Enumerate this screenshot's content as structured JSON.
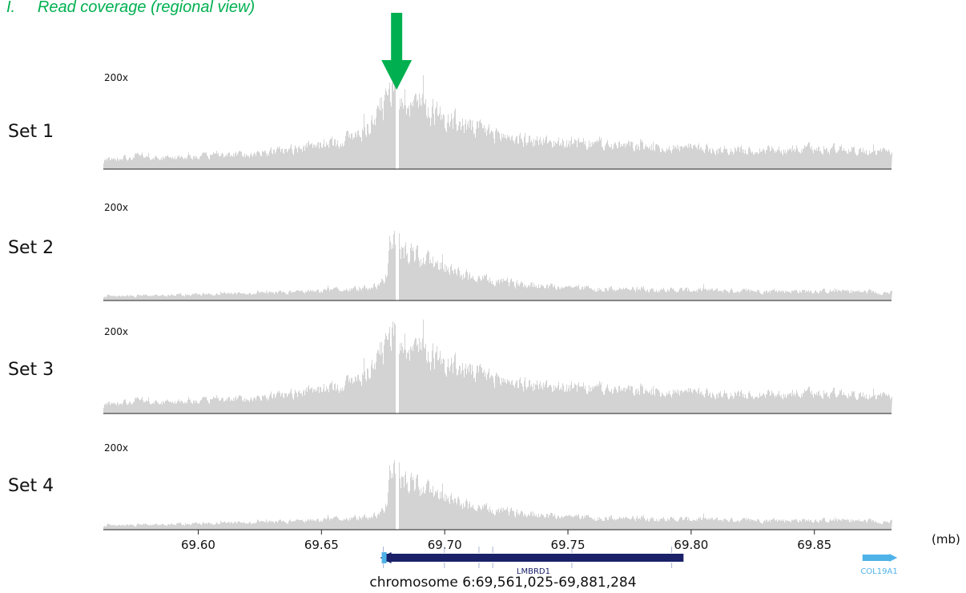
{
  "panel_title": "I.     Read coverage (regional view)",
  "arrow_color": "#00b050",
  "coverage_color": "#d3d3d3",
  "chart_data": {
    "type": "area",
    "title": "Read coverage (regional view)",
    "xlabel": "chromosome 6:69,561,025-69,881,284",
    "x_unit": "(mb)",
    "xlim": [
      69.561025,
      69.881284
    ],
    "x_ticks": [
      "69.60",
      "69.65",
      "69.70",
      "69.75",
      "69.80",
      "69.85"
    ],
    "ylim": [
      0,
      200
    ],
    "scale_label": "200x",
    "highlight_position_mb": 69.6805,
    "tracks": [
      {
        "name": "Set 1",
        "profile": [
          [
            69.561,
            22
          ],
          [
            69.575,
            30
          ],
          [
            69.58,
            25
          ],
          [
            69.6,
            30
          ],
          [
            69.62,
            34
          ],
          [
            69.64,
            48
          ],
          [
            69.655,
            62
          ],
          [
            69.665,
            82
          ],
          [
            69.672,
            120
          ],
          [
            69.678,
            180
          ],
          [
            69.68,
            190
          ],
          [
            69.683,
            168
          ],
          [
            69.69,
            150
          ],
          [
            69.7,
            118
          ],
          [
            69.71,
            98
          ],
          [
            69.72,
            82
          ],
          [
            69.73,
            70
          ],
          [
            69.75,
            60
          ],
          [
            69.78,
            52
          ],
          [
            69.8,
            48
          ],
          [
            69.82,
            44
          ],
          [
            69.84,
            46
          ],
          [
            69.86,
            48
          ],
          [
            69.881,
            36
          ]
        ]
      },
      {
        "name": "Set 2",
        "profile": [
          [
            69.561,
            10
          ],
          [
            69.58,
            12
          ],
          [
            69.6,
            14
          ],
          [
            69.62,
            16
          ],
          [
            69.64,
            20
          ],
          [
            69.66,
            26
          ],
          [
            69.672,
            34
          ],
          [
            69.676,
            56
          ],
          [
            69.678,
            162
          ],
          [
            69.68,
            170
          ],
          [
            69.682,
            120
          ],
          [
            69.69,
            98
          ],
          [
            69.7,
            74
          ],
          [
            69.71,
            56
          ],
          [
            69.72,
            44
          ],
          [
            69.74,
            34
          ],
          [
            69.76,
            28
          ],
          [
            69.8,
            24
          ],
          [
            69.83,
            22
          ],
          [
            69.86,
            22
          ],
          [
            69.881,
            18
          ]
        ]
      },
      {
        "name": "Set 3",
        "profile": [
          [
            69.561,
            22
          ],
          [
            69.575,
            30
          ],
          [
            69.58,
            25
          ],
          [
            69.6,
            30
          ],
          [
            69.62,
            34
          ],
          [
            69.64,
            48
          ],
          [
            69.655,
            62
          ],
          [
            69.665,
            82
          ],
          [
            69.672,
            120
          ],
          [
            69.678,
            180
          ],
          [
            69.68,
            190
          ],
          [
            69.683,
            168
          ],
          [
            69.69,
            150
          ],
          [
            69.7,
            118
          ],
          [
            69.71,
            98
          ],
          [
            69.72,
            82
          ],
          [
            69.73,
            70
          ],
          [
            69.75,
            60
          ],
          [
            69.78,
            52
          ],
          [
            69.8,
            48
          ],
          [
            69.82,
            44
          ],
          [
            69.84,
            46
          ],
          [
            69.86,
            48
          ],
          [
            69.881,
            36
          ]
        ]
      },
      {
        "name": "Set 4",
        "profile": [
          [
            69.561,
            10
          ],
          [
            69.58,
            12
          ],
          [
            69.6,
            14
          ],
          [
            69.62,
            16
          ],
          [
            69.64,
            20
          ],
          [
            69.66,
            26
          ],
          [
            69.672,
            34
          ],
          [
            69.676,
            56
          ],
          [
            69.678,
            162
          ],
          [
            69.68,
            170
          ],
          [
            69.682,
            120
          ],
          [
            69.69,
            98
          ],
          [
            69.7,
            74
          ],
          [
            69.71,
            56
          ],
          [
            69.72,
            44
          ],
          [
            69.74,
            34
          ],
          [
            69.76,
            28
          ],
          [
            69.8,
            24
          ],
          [
            69.83,
            22
          ],
          [
            69.86,
            22
          ],
          [
            69.881,
            18
          ]
        ]
      }
    ],
    "genes": [
      {
        "name": "LMBRD1",
        "start": 69.6751,
        "end": 69.7969,
        "strand": "-",
        "color": "#1a2169",
        "label_color": "#1a2169",
        "exons": [
          69.6751,
          69.6999,
          69.7139,
          69.7195,
          69.7516,
          69.7921
        ]
      },
      {
        "name": "COL19A1",
        "start": 69.8695,
        "end": 69.883,
        "strand": "+",
        "color": "#4fb3e8",
        "label_color": "#4fb3e8",
        "exons": []
      }
    ]
  }
}
